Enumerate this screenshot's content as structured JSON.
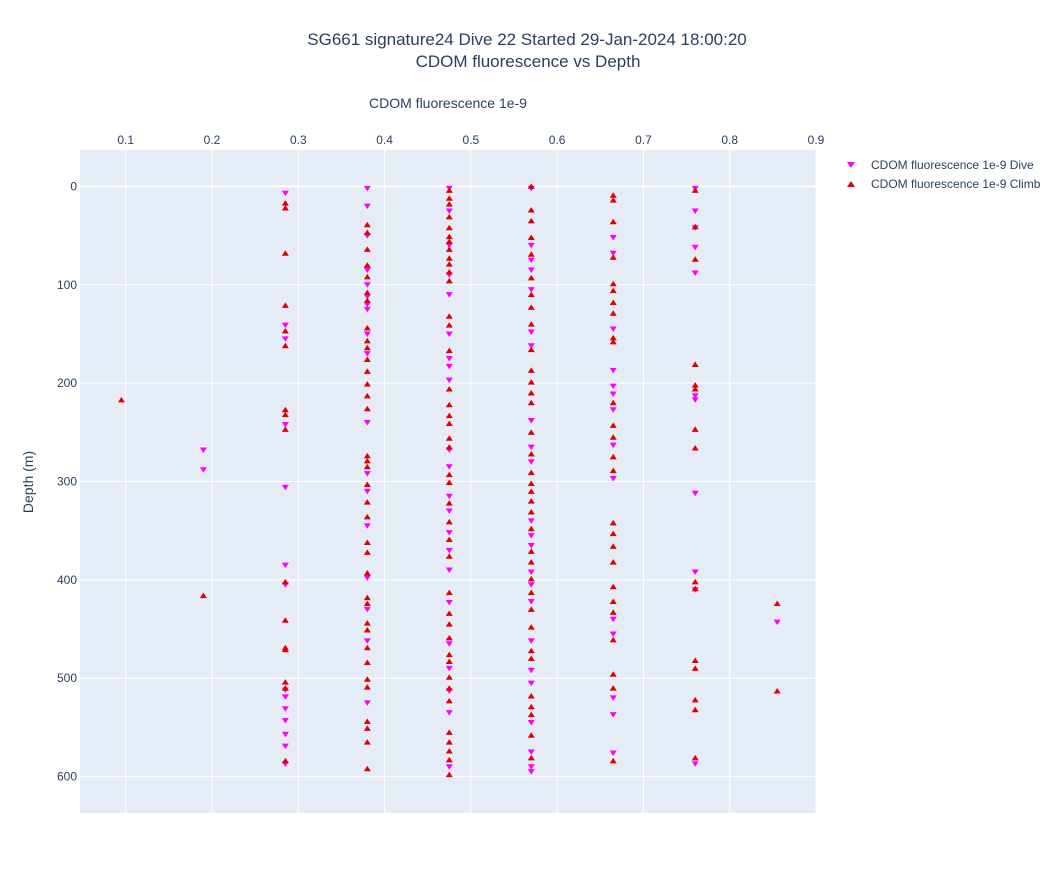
{
  "chart_data": {
    "type": "scatter",
    "title": "SG661 signature24 Dive 22 Started 29-Jan-2024 18:00:20",
    "subtitle": "CDOM fluorescence vs Depth",
    "xlabel": "CDOM fluorescence 1e-9",
    "ylabel": "Depth (m)",
    "xlim": [
      0.047,
      0.9
    ],
    "ylim": [
      637,
      -37
    ],
    "x_axis_position": "top",
    "y_reversed": true,
    "grid": true,
    "legend_position": "top-right",
    "x_ticks": [
      "0.1",
      "0.2",
      "0.3",
      "0.4",
      "0.5",
      "0.6",
      "0.7",
      "0.8",
      "0.9"
    ],
    "y_ticks": [
      "0",
      "100",
      "200",
      "300",
      "400",
      "500",
      "600"
    ],
    "colors": {
      "dive": "#ff00ff",
      "climb": "#e00000",
      "plot_bg": "#e5ecf6",
      "grid": "#ffffff"
    },
    "series": [
      {
        "name": "CDOM fluorescence 1e-9 Dive",
        "marker": "triangle-down",
        "points": [
          [
            0.19,
            268
          ],
          [
            0.19,
            288
          ],
          [
            0.285,
            7
          ],
          [
            0.285,
            141
          ],
          [
            0.285,
            155
          ],
          [
            0.285,
            242
          ],
          [
            0.285,
            306
          ],
          [
            0.285,
            385
          ],
          [
            0.285,
            405
          ],
          [
            0.285,
            512
          ],
          [
            0.285,
            519
          ],
          [
            0.285,
            531
          ],
          [
            0.285,
            543
          ],
          [
            0.285,
            557
          ],
          [
            0.285,
            569
          ],
          [
            0.285,
            587
          ],
          [
            0.38,
            2
          ],
          [
            0.38,
            20
          ],
          [
            0.38,
            50
          ],
          [
            0.38,
            85
          ],
          [
            0.38,
            100
          ],
          [
            0.38,
            112
          ],
          [
            0.38,
            120
          ],
          [
            0.38,
            125
          ],
          [
            0.38,
            150
          ],
          [
            0.38,
            170
          ],
          [
            0.38,
            240
          ],
          [
            0.38,
            292
          ],
          [
            0.38,
            310
          ],
          [
            0.38,
            345
          ],
          [
            0.38,
            398
          ],
          [
            0.38,
            430
          ],
          [
            0.38,
            462
          ],
          [
            0.38,
            525
          ],
          [
            0.475,
            2
          ],
          [
            0.475,
            25
          ],
          [
            0.475,
            60
          ],
          [
            0.475,
            90
          ],
          [
            0.475,
            110
          ],
          [
            0.475,
            150
          ],
          [
            0.475,
            175
          ],
          [
            0.475,
            183
          ],
          [
            0.475,
            197
          ],
          [
            0.475,
            268
          ],
          [
            0.475,
            285
          ],
          [
            0.475,
            315
          ],
          [
            0.475,
            330
          ],
          [
            0.475,
            352
          ],
          [
            0.475,
            370
          ],
          [
            0.475,
            390
          ],
          [
            0.475,
            423
          ],
          [
            0.475,
            465
          ],
          [
            0.475,
            490
          ],
          [
            0.475,
            513
          ],
          [
            0.475,
            535
          ],
          [
            0.475,
            590
          ],
          [
            0.57,
            2
          ],
          [
            0.57,
            60
          ],
          [
            0.57,
            75
          ],
          [
            0.57,
            85
          ],
          [
            0.57,
            105
          ],
          [
            0.57,
            148
          ],
          [
            0.57,
            162
          ],
          [
            0.57,
            238
          ],
          [
            0.57,
            265
          ],
          [
            0.57,
            280
          ],
          [
            0.57,
            340
          ],
          [
            0.57,
            355
          ],
          [
            0.57,
            365
          ],
          [
            0.57,
            392
          ],
          [
            0.57,
            405
          ],
          [
            0.57,
            422
          ],
          [
            0.57,
            462
          ],
          [
            0.57,
            492
          ],
          [
            0.57,
            505
          ],
          [
            0.57,
            545
          ],
          [
            0.57,
            575
          ],
          [
            0.57,
            590
          ],
          [
            0.57,
            595
          ],
          [
            0.665,
            52
          ],
          [
            0.665,
            68
          ],
          [
            0.665,
            145
          ],
          [
            0.665,
            187
          ],
          [
            0.665,
            203
          ],
          [
            0.665,
            211
          ],
          [
            0.665,
            227
          ],
          [
            0.665,
            263
          ],
          [
            0.665,
            297
          ],
          [
            0.665,
            440
          ],
          [
            0.665,
            455
          ],
          [
            0.665,
            520
          ],
          [
            0.665,
            537
          ],
          [
            0.665,
            576
          ],
          [
            0.76,
            2
          ],
          [
            0.76,
            25
          ],
          [
            0.76,
            42
          ],
          [
            0.76,
            62
          ],
          [
            0.76,
            88
          ],
          [
            0.76,
            213
          ],
          [
            0.76,
            217
          ],
          [
            0.76,
            312
          ],
          [
            0.76,
            392
          ],
          [
            0.76,
            410
          ],
          [
            0.76,
            587
          ],
          [
            0.855,
            443
          ]
        ]
      },
      {
        "name": "CDOM fluorescence 1e-9 Climb",
        "marker": "triangle-up",
        "points": [
          [
            0.095,
            217
          ],
          [
            0.19,
            416
          ],
          [
            0.285,
            17
          ],
          [
            0.285,
            22
          ],
          [
            0.285,
            68
          ],
          [
            0.285,
            121
          ],
          [
            0.285,
            147
          ],
          [
            0.285,
            162
          ],
          [
            0.285,
            227
          ],
          [
            0.285,
            232
          ],
          [
            0.285,
            247
          ],
          [
            0.285,
            402
          ],
          [
            0.285,
            441
          ],
          [
            0.285,
            469
          ],
          [
            0.285,
            471
          ],
          [
            0.285,
            504
          ],
          [
            0.285,
            510
          ],
          [
            0.285,
            584
          ],
          [
            0.38,
            39
          ],
          [
            0.38,
            47
          ],
          [
            0.38,
            64
          ],
          [
            0.38,
            80
          ],
          [
            0.38,
            92
          ],
          [
            0.38,
            108
          ],
          [
            0.38,
            116
          ],
          [
            0.38,
            144
          ],
          [
            0.38,
            157
          ],
          [
            0.38,
            164
          ],
          [
            0.38,
            176
          ],
          [
            0.38,
            188
          ],
          [
            0.38,
            201
          ],
          [
            0.38,
            213
          ],
          [
            0.38,
            226
          ],
          [
            0.38,
            274
          ],
          [
            0.38,
            279
          ],
          [
            0.38,
            285
          ],
          [
            0.38,
            303
          ],
          [
            0.38,
            321
          ],
          [
            0.38,
            336
          ],
          [
            0.38,
            362
          ],
          [
            0.38,
            372
          ],
          [
            0.38,
            393
          ],
          [
            0.38,
            418
          ],
          [
            0.38,
            424
          ],
          [
            0.38,
            444
          ],
          [
            0.38,
            451
          ],
          [
            0.38,
            469
          ],
          [
            0.38,
            484
          ],
          [
            0.38,
            501
          ],
          [
            0.38,
            509
          ],
          [
            0.38,
            544
          ],
          [
            0.38,
            551
          ],
          [
            0.38,
            565
          ],
          [
            0.38,
            592
          ],
          [
            0.475,
            4
          ],
          [
            0.475,
            12
          ],
          [
            0.475,
            18
          ],
          [
            0.475,
            31
          ],
          [
            0.475,
            42
          ],
          [
            0.475,
            51
          ],
          [
            0.475,
            56
          ],
          [
            0.475,
            64
          ],
          [
            0.475,
            73
          ],
          [
            0.475,
            79
          ],
          [
            0.475,
            87
          ],
          [
            0.475,
            96
          ],
          [
            0.475,
            132
          ],
          [
            0.475,
            141
          ],
          [
            0.475,
            167
          ],
          [
            0.475,
            206
          ],
          [
            0.475,
            222
          ],
          [
            0.475,
            233
          ],
          [
            0.475,
            241
          ],
          [
            0.475,
            256
          ],
          [
            0.475,
            265
          ],
          [
            0.475,
            293
          ],
          [
            0.475,
            301
          ],
          [
            0.475,
            322
          ],
          [
            0.475,
            341
          ],
          [
            0.475,
            359
          ],
          [
            0.475,
            376
          ],
          [
            0.475,
            413
          ],
          [
            0.475,
            434
          ],
          [
            0.475,
            445
          ],
          [
            0.475,
            459
          ],
          [
            0.475,
            476
          ],
          [
            0.475,
            483
          ],
          [
            0.475,
            499
          ],
          [
            0.475,
            510
          ],
          [
            0.475,
            523
          ],
          [
            0.475,
            555
          ],
          [
            0.475,
            565
          ],
          [
            0.475,
            574
          ],
          [
            0.475,
            583
          ],
          [
            0.475,
            598
          ],
          [
            0.57,
            0
          ],
          [
            0.57,
            24
          ],
          [
            0.57,
            35
          ],
          [
            0.57,
            52
          ],
          [
            0.57,
            69
          ],
          [
            0.57,
            93
          ],
          [
            0.57,
            110
          ],
          [
            0.57,
            123
          ],
          [
            0.57,
            140
          ],
          [
            0.57,
            166
          ],
          [
            0.57,
            187
          ],
          [
            0.57,
            199
          ],
          [
            0.57,
            210
          ],
          [
            0.57,
            220
          ],
          [
            0.57,
            250
          ],
          [
            0.57,
            272
          ],
          [
            0.57,
            291
          ],
          [
            0.57,
            302
          ],
          [
            0.57,
            310
          ],
          [
            0.57,
            320
          ],
          [
            0.57,
            331
          ],
          [
            0.57,
            348
          ],
          [
            0.57,
            371
          ],
          [
            0.57,
            382
          ],
          [
            0.57,
            399
          ],
          [
            0.57,
            413
          ],
          [
            0.57,
            430
          ],
          [
            0.57,
            448
          ],
          [
            0.57,
            472
          ],
          [
            0.57,
            480
          ],
          [
            0.57,
            518
          ],
          [
            0.57,
            529
          ],
          [
            0.57,
            537
          ],
          [
            0.57,
            558
          ],
          [
            0.57,
            581
          ],
          [
            0.665,
            9
          ],
          [
            0.665,
            14
          ],
          [
            0.665,
            36
          ],
          [
            0.665,
            72
          ],
          [
            0.665,
            99
          ],
          [
            0.665,
            106
          ],
          [
            0.665,
            118
          ],
          [
            0.665,
            129
          ],
          [
            0.665,
            154
          ],
          [
            0.665,
            158
          ],
          [
            0.665,
            220
          ],
          [
            0.665,
            243
          ],
          [
            0.665,
            255
          ],
          [
            0.665,
            275
          ],
          [
            0.665,
            289
          ],
          [
            0.665,
            342
          ],
          [
            0.665,
            353
          ],
          [
            0.665,
            366
          ],
          [
            0.665,
            382
          ],
          [
            0.665,
            407
          ],
          [
            0.665,
            422
          ],
          [
            0.665,
            433
          ],
          [
            0.665,
            461
          ],
          [
            0.665,
            496
          ],
          [
            0.665,
            510
          ],
          [
            0.665,
            584
          ],
          [
            0.76,
            4
          ],
          [
            0.76,
            41
          ],
          [
            0.76,
            74
          ],
          [
            0.76,
            181
          ],
          [
            0.76,
            202
          ],
          [
            0.76,
            206
          ],
          [
            0.76,
            247
          ],
          [
            0.76,
            266
          ],
          [
            0.76,
            402
          ],
          [
            0.76,
            409
          ],
          [
            0.76,
            482
          ],
          [
            0.76,
            490
          ],
          [
            0.76,
            522
          ],
          [
            0.76,
            532
          ],
          [
            0.76,
            581
          ],
          [
            0.855,
            424
          ],
          [
            0.855,
            513
          ]
        ]
      }
    ]
  }
}
